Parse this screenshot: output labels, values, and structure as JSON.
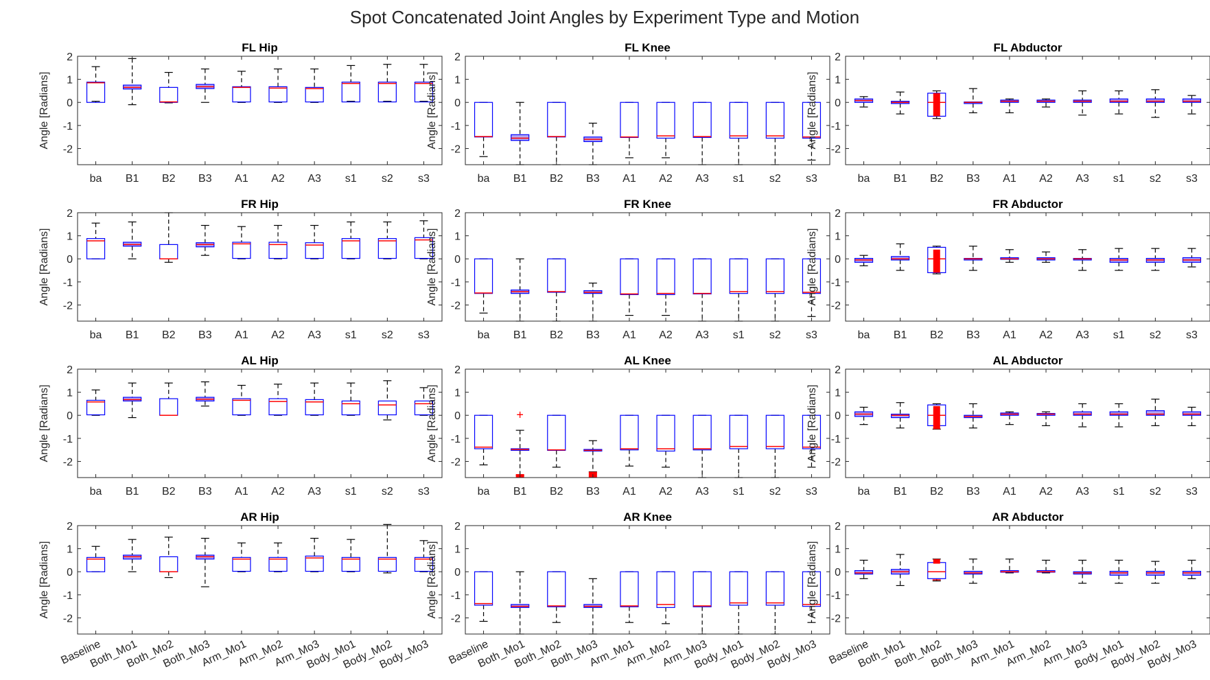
{
  "figure": {
    "title": "Spot Concatenated Joint Angles by Experiment Type and Motion"
  },
  "chart_data": {
    "type": "box",
    "ylabel": "Angle [Radians]",
    "ylim": [
      -2.7,
      2
    ],
    "yticks": [
      2,
      1,
      0,
      -1,
      -2
    ],
    "colors": {
      "box": "#0000ff",
      "median": "#ff0000",
      "outlier": "#ff0000",
      "whisker": "#000000",
      "fill": "#b3a6f2"
    },
    "short_labels": [
      "ba",
      "B1",
      "B2",
      "B3",
      "A1",
      "A2",
      "A3",
      "s1",
      "s2",
      "s3"
    ],
    "long_labels": [
      "Baseline",
      "Both_Mo1",
      "Both_Mo2",
      "Both_Mo3",
      "Arm_Mo1",
      "Arm_Mo2",
      "Arm_Mo3",
      "Body_Mo1",
      "Body_Mo2",
      "Body_Mo3"
    ],
    "panels": [
      {
        "title": "FL Hip",
        "boxes": [
          [
            0.05,
            0.0,
            0.85,
            0.88,
            1.55,
            0
          ],
          [
            -0.1,
            0.58,
            0.65,
            0.75,
            1.9,
            0
          ],
          [
            -0.02,
            0.0,
            0.02,
            0.65,
            1.3,
            0
          ],
          [
            0.0,
            0.6,
            0.68,
            0.78,
            1.45,
            0
          ],
          [
            0.0,
            0.02,
            0.65,
            0.68,
            1.35,
            0
          ],
          [
            0.0,
            0.02,
            0.62,
            0.68,
            1.45,
            0
          ],
          [
            0.0,
            0.02,
            0.6,
            0.65,
            1.45,
            0
          ],
          [
            0.05,
            0.02,
            0.82,
            0.88,
            1.6,
            0
          ],
          [
            0.05,
            0.02,
            0.82,
            0.88,
            1.65,
            0
          ],
          [
            0.05,
            0.02,
            0.82,
            0.88,
            1.65,
            0
          ]
        ]
      },
      {
        "title": "FL Knee",
        "boxes": [
          [
            -2.35,
            -1.5,
            -1.48,
            0.0,
            0.0,
            0
          ],
          [
            -2.7,
            -1.65,
            -1.55,
            -1.4,
            0.0,
            0
          ],
          [
            -2.7,
            -1.5,
            -1.48,
            0.0,
            0.0,
            0
          ],
          [
            -2.7,
            -1.7,
            -1.6,
            -1.5,
            -0.9,
            0
          ],
          [
            -2.4,
            -1.52,
            -1.5,
            0.0,
            0.0,
            0
          ],
          [
            -2.4,
            -1.55,
            -1.45,
            0.0,
            0.0,
            0
          ],
          [
            -2.7,
            -1.52,
            -1.48,
            0.0,
            0.0,
            0
          ],
          [
            -2.7,
            -1.55,
            -1.45,
            0.0,
            0.0,
            0
          ],
          [
            -2.7,
            -1.55,
            -1.45,
            0.0,
            0.0,
            0
          ],
          [
            -2.5,
            -1.55,
            -1.5,
            0.0,
            0.0,
            0
          ]
        ]
      },
      {
        "title": "FL Abductor",
        "boxes": [
          [
            -0.2,
            0.0,
            0.08,
            0.15,
            0.25,
            0
          ],
          [
            -0.5,
            -0.05,
            0.0,
            0.05,
            0.45,
            0
          ],
          [
            -0.7,
            -0.6,
            0.0,
            0.4,
            0.5,
            1
          ],
          [
            -0.45,
            -0.05,
            0.0,
            0.02,
            0.6,
            0
          ],
          [
            -0.45,
            0.0,
            0.05,
            0.1,
            0.15,
            0
          ],
          [
            -0.2,
            0.0,
            0.05,
            0.1,
            0.15,
            0
          ],
          [
            -0.55,
            0.0,
            0.05,
            0.1,
            0.5,
            0
          ],
          [
            -0.5,
            0.0,
            0.05,
            0.15,
            0.5,
            0
          ],
          [
            -0.65,
            0.0,
            0.05,
            0.15,
            0.55,
            0
          ],
          [
            -0.5,
            0.0,
            0.05,
            0.15,
            0.3,
            0
          ]
        ]
      },
      {
        "title": "FR Hip",
        "boxes": [
          [
            0.0,
            0.0,
            0.78,
            0.88,
            1.55,
            0
          ],
          [
            0.0,
            0.55,
            0.62,
            0.72,
            1.6,
            0
          ],
          [
            -0.15,
            0.0,
            0.0,
            0.62,
            2.0,
            0
          ],
          [
            0.15,
            0.52,
            0.62,
            0.7,
            1.45,
            0
          ],
          [
            0.0,
            0.02,
            0.65,
            0.72,
            1.4,
            0
          ],
          [
            0.0,
            0.02,
            0.62,
            0.72,
            1.45,
            0
          ],
          [
            0.0,
            0.02,
            0.6,
            0.7,
            1.45,
            0
          ],
          [
            0.0,
            0.02,
            0.78,
            0.88,
            1.6,
            0
          ],
          [
            0.0,
            0.02,
            0.78,
            0.88,
            1.6,
            0
          ],
          [
            0.0,
            0.02,
            0.82,
            0.92,
            1.65,
            0
          ]
        ]
      },
      {
        "title": "FR Knee",
        "boxes": [
          [
            -2.35,
            -1.5,
            -1.48,
            0.0,
            0.0,
            0
          ],
          [
            -2.7,
            -1.5,
            -1.42,
            -1.35,
            0.0,
            0
          ],
          [
            -2.7,
            -1.45,
            -1.42,
            0.0,
            0.0,
            0
          ],
          [
            -2.7,
            -1.5,
            -1.45,
            -1.38,
            -1.05,
            0
          ],
          [
            -2.45,
            -1.55,
            -1.52,
            0.0,
            0.0,
            0
          ],
          [
            -2.45,
            -1.55,
            -1.5,
            0.0,
            0.0,
            0
          ],
          [
            -2.7,
            -1.52,
            -1.5,
            0.0,
            0.0,
            0
          ],
          [
            -2.7,
            -1.5,
            -1.42,
            0.0,
            0.0,
            0
          ],
          [
            -2.7,
            -1.5,
            -1.42,
            0.0,
            0.0,
            0
          ],
          [
            -2.5,
            -1.5,
            -1.45,
            0.0,
            0.0,
            0
          ]
        ]
      },
      {
        "title": "FR Abductor",
        "boxes": [
          [
            -0.3,
            -0.15,
            -0.05,
            0.02,
            0.15,
            0
          ],
          [
            -0.5,
            -0.05,
            0.0,
            0.1,
            0.65,
            0
          ],
          [
            -0.65,
            -0.6,
            0.0,
            0.5,
            0.55,
            1
          ],
          [
            -0.5,
            -0.05,
            0.0,
            0.02,
            0.55,
            0
          ],
          [
            -0.15,
            -0.02,
            0.0,
            0.05,
            0.4,
            0
          ],
          [
            -0.15,
            -0.05,
            0.0,
            0.05,
            0.3,
            0
          ],
          [
            -0.5,
            -0.05,
            0.0,
            0.02,
            0.4,
            0
          ],
          [
            -0.5,
            -0.15,
            -0.05,
            0.02,
            0.45,
            0
          ],
          [
            -0.5,
            -0.15,
            -0.05,
            0.02,
            0.45,
            0
          ],
          [
            -0.35,
            -0.15,
            -0.05,
            0.05,
            0.45,
            0
          ]
        ]
      },
      {
        "title": "AL Hip",
        "boxes": [
          [
            0.0,
            0.02,
            0.58,
            0.65,
            1.1,
            0
          ],
          [
            -0.1,
            0.62,
            0.68,
            0.78,
            1.4,
            0
          ],
          [
            0.0,
            0.0,
            0.0,
            0.72,
            1.4,
            0
          ],
          [
            0.4,
            0.62,
            0.7,
            0.78,
            1.45,
            0
          ],
          [
            0.0,
            0.02,
            0.65,
            0.72,
            1.3,
            0
          ],
          [
            0.0,
            0.02,
            0.6,
            0.72,
            1.35,
            0
          ],
          [
            0.0,
            0.02,
            0.58,
            0.68,
            1.4,
            0
          ],
          [
            0.0,
            0.02,
            0.5,
            0.62,
            1.4,
            0
          ],
          [
            -0.2,
            0.02,
            0.45,
            0.62,
            1.5,
            0
          ],
          [
            0.0,
            0.02,
            0.5,
            0.62,
            1.2,
            0
          ]
        ]
      },
      {
        "title": "AL Knee",
        "boxes": [
          [
            -2.15,
            -1.45,
            -1.38,
            0.0,
            0.0,
            0
          ],
          [
            -2.6,
            -1.52,
            -1.48,
            -1.45,
            -0.65,
            2
          ],
          [
            -2.25,
            -1.52,
            -1.5,
            0.0,
            0.0,
            0
          ],
          [
            -2.45,
            -1.55,
            -1.52,
            -1.48,
            -1.1,
            3
          ],
          [
            -2.2,
            -1.5,
            -1.45,
            0.0,
            0.0,
            0
          ],
          [
            -2.25,
            -1.55,
            -1.45,
            0.0,
            0.0,
            0
          ],
          [
            -2.7,
            -1.5,
            -1.45,
            0.0,
            0.0,
            0
          ],
          [
            -2.7,
            -1.45,
            -1.35,
            0.0,
            0.0,
            0
          ],
          [
            -2.7,
            -1.45,
            -1.35,
            0.0,
            0.0,
            0
          ],
          [
            -2.25,
            -1.45,
            -1.38,
            0.0,
            0.0,
            0
          ]
        ]
      },
      {
        "title": "AL Abductor",
        "boxes": [
          [
            -0.4,
            -0.05,
            0.05,
            0.15,
            0.35,
            0
          ],
          [
            -0.55,
            -0.1,
            0.0,
            0.05,
            0.55,
            0
          ],
          [
            -0.6,
            -0.45,
            0.0,
            0.45,
            0.5,
            1
          ],
          [
            -0.55,
            -0.1,
            -0.05,
            0.0,
            0.5,
            0
          ],
          [
            -0.4,
            0.0,
            0.05,
            0.1,
            0.15,
            0
          ],
          [
            -0.45,
            0.0,
            0.05,
            0.08,
            0.15,
            0
          ],
          [
            -0.5,
            0.0,
            0.05,
            0.15,
            0.5,
            0
          ],
          [
            -0.5,
            0.0,
            0.05,
            0.15,
            0.5,
            0
          ],
          [
            -0.45,
            0.0,
            0.05,
            0.2,
            0.7,
            0
          ],
          [
            -0.45,
            0.0,
            0.05,
            0.15,
            0.35,
            0
          ]
        ]
      },
      {
        "title": "AR Hip",
        "boxes": [
          [
            0.0,
            0.0,
            0.55,
            0.62,
            1.1,
            0
          ],
          [
            0.0,
            0.55,
            0.65,
            0.72,
            1.4,
            0
          ],
          [
            -0.25,
            0.0,
            0.0,
            0.65,
            1.5,
            0
          ],
          [
            -0.65,
            0.55,
            0.65,
            0.72,
            1.45,
            0
          ],
          [
            0.0,
            0.02,
            0.55,
            0.62,
            1.25,
            0
          ],
          [
            0.0,
            0.02,
            0.55,
            0.62,
            1.25,
            0
          ],
          [
            0.0,
            0.02,
            0.6,
            0.68,
            1.45,
            0
          ],
          [
            0.0,
            0.02,
            0.55,
            0.62,
            1.4,
            0
          ],
          [
            -0.05,
            0.02,
            0.55,
            0.62,
            2.05,
            0
          ],
          [
            0.0,
            0.02,
            0.55,
            0.62,
            1.35,
            0
          ]
        ]
      },
      {
        "title": "AR Knee",
        "boxes": [
          [
            -2.15,
            -1.45,
            -1.38,
            0.0,
            0.0,
            0
          ],
          [
            -2.7,
            -1.55,
            -1.5,
            -1.42,
            0.0,
            0
          ],
          [
            -2.2,
            -1.52,
            -1.48,
            0.0,
            0.0,
            0
          ],
          [
            -2.7,
            -1.55,
            -1.5,
            -1.42,
            -0.3,
            0
          ],
          [
            -2.2,
            -1.52,
            -1.48,
            0.0,
            0.0,
            0
          ],
          [
            -2.25,
            -1.55,
            -1.42,
            0.0,
            0.0,
            0
          ],
          [
            -2.7,
            -1.52,
            -1.48,
            0.0,
            0.0,
            0
          ],
          [
            -2.7,
            -1.45,
            -1.35,
            0.0,
            0.0,
            0
          ],
          [
            -2.7,
            -1.45,
            -1.35,
            0.0,
            0.0,
            0
          ],
          [
            -2.2,
            -1.5,
            -1.42,
            0.0,
            0.0,
            0
          ]
        ]
      },
      {
        "title": "AR Abductor",
        "boxes": [
          [
            -0.3,
            -0.1,
            -0.05,
            0.05,
            0.5,
            0
          ],
          [
            -0.6,
            -0.1,
            0.0,
            0.1,
            0.75,
            0
          ],
          [
            -0.4,
            -0.3,
            0.0,
            0.4,
            0.55,
            4
          ],
          [
            -0.5,
            -0.1,
            -0.05,
            0.02,
            0.55,
            0
          ],
          [
            -0.05,
            -0.02,
            0.0,
            0.05,
            0.55,
            0
          ],
          [
            -0.05,
            -0.02,
            0.0,
            0.05,
            0.5,
            0
          ],
          [
            -0.5,
            -0.1,
            -0.05,
            0.0,
            0.5,
            0
          ],
          [
            -0.5,
            -0.15,
            -0.05,
            0.02,
            0.5,
            0
          ],
          [
            -0.5,
            -0.15,
            -0.05,
            0.02,
            0.45,
            0
          ],
          [
            -0.3,
            -0.15,
            -0.05,
            0.02,
            0.5,
            0
          ]
        ]
      }
    ]
  }
}
